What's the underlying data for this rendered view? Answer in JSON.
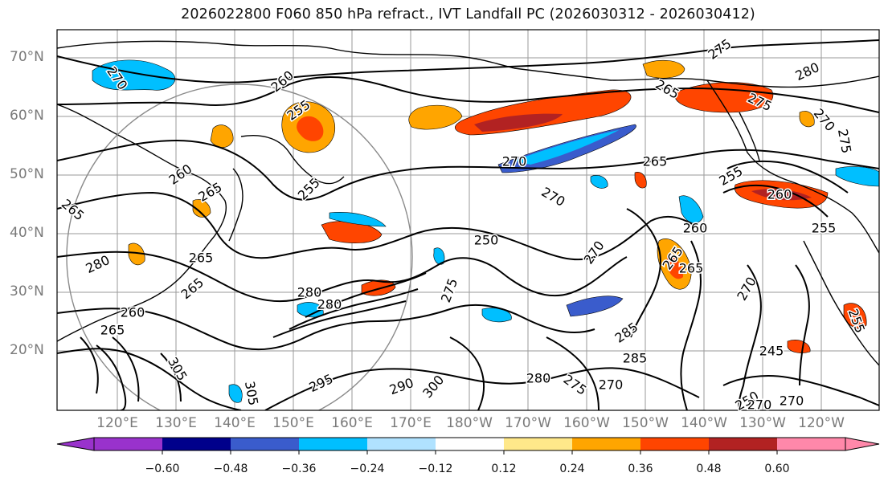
{
  "title": "2026022800 F060 850 hPa refract., IVT Landfall PC (2026030312 - 2026030412)",
  "map": {
    "lat_labels": [
      "70°N",
      "60°N",
      "50°N",
      "40°N",
      "30°N",
      "20°N"
    ],
    "lon_labels": [
      "120°E",
      "130°E",
      "140°E",
      "150°E",
      "160°E",
      "170°E",
      "180°W",
      "170°W",
      "160°W",
      "150°W",
      "140°W",
      "130°W",
      "120°W"
    ],
    "contour_labels": [
      "275",
      "280",
      "270",
      "260",
      "265",
      "255",
      "275",
      "270",
      "270",
      "265",
      "260",
      "255",
      "255",
      "260",
      "265",
      "265",
      "270",
      "260",
      "255",
      "250",
      "280",
      "270",
      "265",
      "265",
      "275",
      "265",
      "270",
      "280",
      "280",
      "260",
      "265",
      "285",
      "285",
      "290",
      "295",
      "300",
      "305",
      "305",
      "280",
      "275",
      "270",
      "245",
      "250",
      "270",
      "255",
      "270",
      "275",
      "265"
    ],
    "colors": {
      "land_outline": "#000000",
      "gridline": "#999999",
      "circle": "#8a8a8a"
    }
  },
  "colorbar": {
    "ticks": [
      "−0.60",
      "−0.48",
      "−0.36",
      "−0.24",
      "−0.12",
      "0.12",
      "0.24",
      "0.36",
      "0.48",
      "0.60"
    ],
    "colors": [
      "#9932cc",
      "#00008b",
      "#3a5ccc",
      "#00bfff",
      "#b0e2ff",
      "#ffffff",
      "#ffe88a",
      "#ffa500",
      "#ff4500",
      "#b22222",
      "#ff88aa"
    ]
  }
}
